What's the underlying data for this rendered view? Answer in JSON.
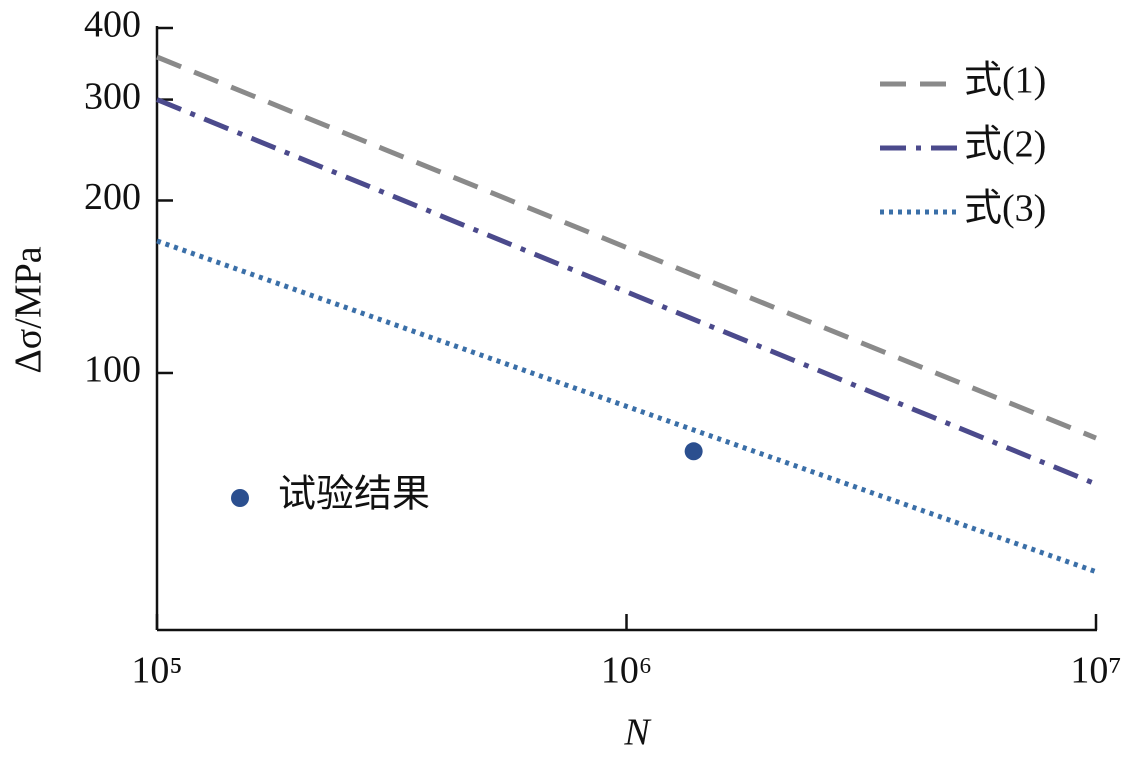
{
  "chart_data": {
    "type": "line",
    "xlog": true,
    "ylog": true,
    "xlabel": "N",
    "ylabel": "Δσ/MPa",
    "xlim": [
      100000,
      10000000
    ],
    "ylim": [
      35.6,
      400
    ],
    "xticks": [
      {
        "value": 100000,
        "label": "10⁵"
      },
      {
        "value": 1000000,
        "label": "10⁶"
      },
      {
        "value": 10000000,
        "label": "10⁷"
      }
    ],
    "yticks": [
      100,
      200,
      300,
      400
    ],
    "series": [
      {
        "name": "式(1)",
        "color": "#8a8a8a",
        "dash": "dashed",
        "x": [
          100000,
          10000000
        ],
        "values": [
          356,
          77
        ]
      },
      {
        "name": "式(2)",
        "color": "#4b4a8c",
        "dash": "dashdot",
        "x": [
          100000,
          10000000
        ],
        "values": [
          300,
          64
        ]
      },
      {
        "name": "式(3)",
        "color": "#3a6fa8",
        "dash": "dotted",
        "x": [
          100000,
          10000000
        ],
        "values": [
          170,
          45
        ]
      },
      {
        "name": "试验结果",
        "color": "#2b4f8f",
        "marker": "circle",
        "x": [
          1390000
        ],
        "values": [
          73
        ]
      }
    ]
  }
}
